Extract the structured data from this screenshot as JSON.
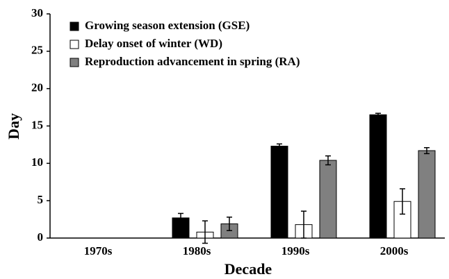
{
  "chart_data": {
    "type": "bar",
    "x_label": "Decade",
    "y_label": "Day",
    "categories": [
      "1970s",
      "1980s",
      "1990s",
      "2000s"
    ],
    "series": [
      {
        "name": "Growing season extension (GSE)",
        "color": "#000000",
        "values": [
          0,
          2.7,
          12.3,
          16.5
        ],
        "errors": [
          0,
          0.6,
          0.3,
          0.2
        ]
      },
      {
        "name": "Delay onset of winter (WD)",
        "color": "#ffffff",
        "values": [
          0,
          0.8,
          1.8,
          4.9
        ],
        "errors": [
          0,
          1.5,
          1.8,
          1.7
        ]
      },
      {
        "name": "Reproduction advancement in spring (RA)",
        "color": "#808080",
        "values": [
          0,
          1.9,
          10.4,
          11.7
        ],
        "errors": [
          0,
          0.9,
          0.6,
          0.4
        ]
      }
    ],
    "ylim": [
      0,
      30
    ],
    "yticks": [
      0,
      5,
      10,
      15,
      20,
      25,
      30
    ],
    "legend": "upper left"
  }
}
